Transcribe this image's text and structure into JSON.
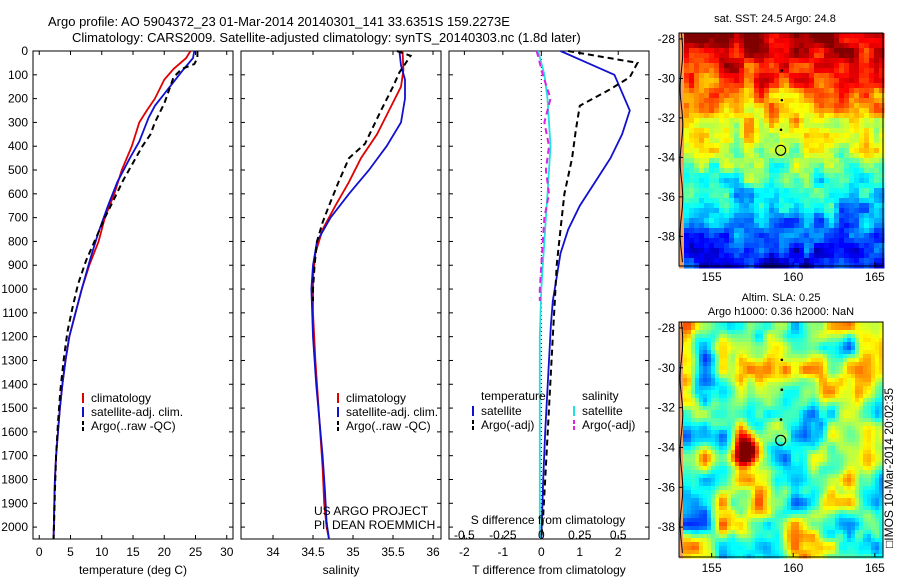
{
  "header": {
    "line1": "Argo profile: AO 5904372_23 01-Mar-2014 20140301_141 33.6351S 159.2273E",
    "line2": "Climatology: CARS2009. Satellite-adjusted climatology: synTS_20140303.nc (1.8d later)"
  },
  "colors": {
    "clim": "#e00000",
    "sat": "#1010d0",
    "argo": "#000000",
    "sat_salt": "#20e0e0",
    "argo_salt": "#e020e0"
  },
  "chart_data": [
    {
      "type": "line",
      "id": "temperature",
      "xlabel": "temperature (deg C)",
      "ylabel": "",
      "xlim": [
        -1,
        31
      ],
      "ylim": [
        2050,
        0
      ],
      "xticks": [
        0,
        5,
        10,
        15,
        20,
        25,
        30
      ],
      "yticks": [
        0,
        100,
        200,
        300,
        400,
        500,
        600,
        700,
        800,
        900,
        1000,
        1100,
        1200,
        1300,
        1400,
        1500,
        1600,
        1700,
        1800,
        1900,
        2000
      ],
      "legend": [
        "climatology",
        "satellite-adj. clim.",
        "Argo(..raw -QC)"
      ],
      "series": [
        {
          "name": "climatology",
          "color": "clim",
          "x": [
            24.2,
            23.5,
            21.5,
            20.0,
            18.5,
            17.2,
            16.0,
            14.8,
            13.2,
            12.0,
            10.5,
            9.5,
            8.0,
            6.8,
            5.8,
            4.8,
            4.2,
            3.7,
            3.3,
            3.0,
            2.7,
            2.5,
            2.4,
            2.3
          ],
          "y": [
            0,
            30,
            75,
            120,
            200,
            250,
            300,
            400,
            500,
            600,
            700,
            800,
            900,
            1000,
            1100,
            1200,
            1300,
            1400,
            1500,
            1600,
            1700,
            1800,
            1900,
            2050
          ]
        },
        {
          "name": "satellite-adj. clim.",
          "color": "sat",
          "x": [
            24.8,
            24.6,
            23.0,
            21.8,
            20.0,
            18.5,
            17.5,
            16.0,
            14.5,
            12.5,
            11.0,
            9.5,
            8.2,
            6.8,
            5.8,
            4.8,
            4.2,
            3.7,
            3.3,
            3.0,
            2.7,
            2.5,
            2.4,
            2.3
          ],
          "y": [
            0,
            30,
            80,
            120,
            180,
            230,
            280,
            380,
            450,
            550,
            650,
            760,
            870,
            1000,
            1100,
            1200,
            1300,
            1400,
            1500,
            1600,
            1700,
            1800,
            1900,
            2050
          ]
        },
        {
          "name": "Argo(..raw -QC)",
          "color": "argo",
          "dash": true,
          "x": [
            25.3,
            25.3,
            24.8,
            22.8,
            21.5,
            20.0,
            18.5,
            17.8,
            16.5,
            15.0,
            13.5,
            12.0,
            10.5,
            9.0,
            7.5,
            6.2,
            5.3,
            4.5,
            3.9,
            3.4,
            3.0,
            2.7,
            2.5,
            2.4,
            2.3
          ],
          "y": [
            0,
            30,
            55,
            75,
            110,
            220,
            300,
            350,
            400,
            470,
            540,
            620,
            700,
            790,
            880,
            980,
            1080,
            1180,
            1300,
            1420,
            1560,
            1700,
            1850,
            1950,
            2050
          ]
        }
      ]
    },
    {
      "type": "line",
      "id": "salinity",
      "xlabel": "salinity",
      "ylabel": "",
      "xlim": [
        33.6,
        36.1
      ],
      "ylim": [
        2050,
        0
      ],
      "xticks": [
        34,
        34.5,
        35,
        35.5,
        36
      ],
      "xticklabels": [
        "34",
        "34.5",
        "35",
        "35.5",
        "36"
      ],
      "legend": [
        "climatology",
        "satellite-adj. clim.",
        "Argo(..raw -QC)"
      ],
      "series": [
        {
          "name": "climatology",
          "color": "clim",
          "x": [
            35.62,
            35.63,
            35.6,
            35.45,
            35.3,
            35.1,
            34.95,
            34.78,
            34.62,
            34.53,
            34.5,
            34.5,
            34.53,
            34.56,
            34.59,
            34.62,
            34.64,
            34.67,
            34.7
          ],
          "y": [
            0,
            80,
            150,
            250,
            350,
            450,
            550,
            650,
            750,
            850,
            950,
            1100,
            1300,
            1450,
            1600,
            1750,
            1900,
            2000,
            2050
          ]
        },
        {
          "name": "satellite-adj. clim.",
          "color": "sat",
          "x": [
            35.58,
            35.6,
            35.65,
            35.65,
            35.6,
            35.42,
            35.2,
            34.95,
            34.72,
            34.55,
            34.5,
            34.48,
            34.5,
            34.54,
            34.58,
            34.62,
            34.65,
            34.67,
            34.7
          ],
          "y": [
            0,
            60,
            120,
            200,
            300,
            400,
            500,
            600,
            700,
            800,
            900,
            1000,
            1200,
            1400,
            1550,
            1700,
            1850,
            1980,
            2050
          ]
        },
        {
          "name": "Argo(..raw -QC)",
          "color": "argo",
          "dash": true,
          "x": [
            35.55,
            35.72,
            35.58,
            35.5,
            35.35,
            35.15,
            34.95,
            34.82,
            34.7,
            34.62,
            34.55,
            34.52,
            34.5,
            34.5
          ],
          "y": [
            0,
            20,
            90,
            150,
            250,
            390,
            450,
            550,
            650,
            720,
            800,
            900,
            1000,
            1050
          ]
        }
      ]
    },
    {
      "type": "line",
      "id": "difference",
      "xlabel": "T difference from climatology",
      "xlabel_top": "S difference from climatology",
      "xlim": [
        -2.4,
        2.8
      ],
      "ylim": [
        2050,
        0
      ],
      "xticks": [
        -2,
        -1,
        0,
        1,
        2
      ],
      "xticks_top": [
        -0.5,
        -0.25,
        0,
        0.25,
        0.5
      ],
      "legend_left_title": "temperature",
      "legend_right_title": "salinity",
      "legend": [
        "satellite",
        "Argo(-adj)",
        "satellite",
        "Argo(-adj)"
      ],
      "series": [
        {
          "name": "temperature satellite",
          "color": "sat",
          "x": [
            0.5,
            1.2,
            1.9,
            2.3,
            2.1,
            1.8,
            1.4,
            1.0,
            0.7,
            0.5,
            0.4,
            0.3,
            0.25,
            0.2,
            0.15,
            0.1,
            0.05,
            0.02,
            0.0
          ],
          "y": [
            0,
            50,
            100,
            250,
            350,
            450,
            550,
            650,
            750,
            850,
            950,
            1050,
            1150,
            1300,
            1450,
            1600,
            1800,
            1950,
            2050
          ]
        },
        {
          "name": "temperature Argo(-adj)",
          "color": "argo",
          "dash": true,
          "x": [
            0.7,
            2.5,
            2.3,
            1.8,
            1.0,
            0.9,
            0.8,
            0.6,
            0.5,
            0.4,
            0.35,
            0.3,
            0.25,
            0.2,
            0.15,
            0.1,
            0.05,
            0.0
          ],
          "y": [
            0,
            50,
            110,
            160,
            230,
            330,
            450,
            600,
            750,
            900,
            1050,
            1200,
            1350,
            1500,
            1650,
            1800,
            1950,
            2050
          ]
        },
        {
          "name": "salinity satellite",
          "color": "sat_salt",
          "x": [
            -0.02,
            0.02,
            0.04,
            0.05,
            0.06,
            0.05,
            0.04,
            0.03,
            0.02,
            0.01,
            0.0,
            -0.01,
            -0.01,
            -0.01,
            -0.01
          ],
          "y": [
            0,
            100,
            200,
            300,
            400,
            500,
            600,
            700,
            800,
            900,
            1000,
            1200,
            1400,
            1700,
            2050
          ]
        },
        {
          "name": "salinity Argo(-adj)",
          "color": "argo_salt",
          "dash": true,
          "x": [
            -0.03,
            0.01,
            0.06,
            0.02,
            0.05,
            0.03,
            0.05,
            0.02,
            0.01,
            0.0,
            -0.01,
            -0.01
          ],
          "y": [
            0,
            100,
            200,
            300,
            400,
            500,
            600,
            700,
            800,
            900,
            1000,
            1050
          ]
        }
      ]
    },
    {
      "type": "heatmap",
      "id": "sst_map",
      "title": "sat. SST: 24.5 Argo: 24.8",
      "xlim": [
        153,
        165.5
      ],
      "ylim": [
        -39.5,
        -27.7
      ],
      "xticks": [
        155,
        160,
        165
      ],
      "yticks": [
        -28,
        -30,
        -32,
        -34,
        -36,
        -38
      ],
      "argo_position": [
        159.23,
        -33.64
      ]
    },
    {
      "type": "heatmap",
      "id": "sla_map",
      "title": "Altim. SLA: 0.25",
      "title2": "Argo h1000: 0.36 h2000: NaN",
      "xlim": [
        153,
        165.5
      ],
      "ylim": [
        -39.5,
        -27.7
      ],
      "xticks": [
        155,
        160,
        165
      ],
      "yticks": [
        -28,
        -30,
        -32,
        -34,
        -36,
        -38
      ],
      "argo_position": [
        159.23,
        -33.64
      ]
    }
  ],
  "credits": {
    "project": "US ARGO PROJECT",
    "pi": "PI: DEAN ROEMMICH",
    "imos": "□IMOS 10-Mar-2014 20:02:35"
  }
}
